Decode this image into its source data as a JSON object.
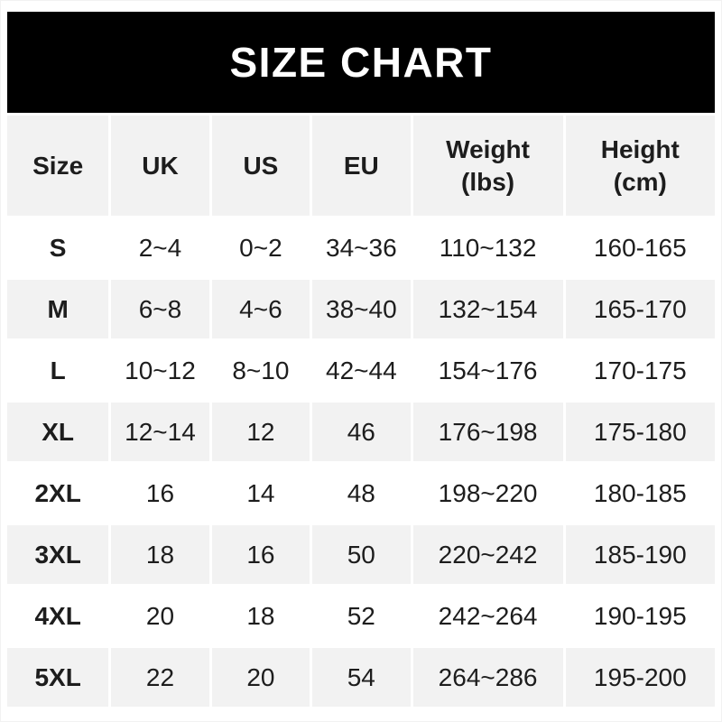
{
  "banner": {
    "title": "SIZE CHART"
  },
  "chart_data": {
    "type": "table",
    "title": "SIZE CHART",
    "columns": [
      {
        "label": "Size",
        "sub": ""
      },
      {
        "label": "UK",
        "sub": ""
      },
      {
        "label": "US",
        "sub": ""
      },
      {
        "label": "EU",
        "sub": ""
      },
      {
        "label": "Weight",
        "sub": "(lbs)"
      },
      {
        "label": "Height",
        "sub": "(cm)"
      }
    ],
    "rows": [
      {
        "size": "S",
        "uk": "2~4",
        "us": "0~2",
        "eu": "34~36",
        "weight": "110~132",
        "height": "160-165"
      },
      {
        "size": "M",
        "uk": "6~8",
        "us": "4~6",
        "eu": "38~40",
        "weight": "132~154",
        "height": "165-170"
      },
      {
        "size": "L",
        "uk": "10~12",
        "us": "8~10",
        "eu": "42~44",
        "weight": "154~176",
        "height": "170-175"
      },
      {
        "size": "XL",
        "uk": "12~14",
        "us": "12",
        "eu": "46",
        "weight": "176~198",
        "height": "175-180"
      },
      {
        "size": "2XL",
        "uk": "16",
        "us": "14",
        "eu": "48",
        "weight": "198~220",
        "height": "180-185"
      },
      {
        "size": "3XL",
        "uk": "18",
        "us": "16",
        "eu": "50",
        "weight": "220~242",
        "height": "185-190"
      },
      {
        "size": "4XL",
        "uk": "20",
        "us": "18",
        "eu": "52",
        "weight": "242~264",
        "height": "190-195"
      },
      {
        "size": "5XL",
        "uk": "22",
        "us": "20",
        "eu": "54",
        "weight": "264~286",
        "height": "195-200"
      }
    ]
  },
  "colors": {
    "banner_bg": "#000000",
    "banner_text": "#ffffff",
    "row_stripe": "#f2f2f2",
    "text": "#1d1d1d"
  }
}
